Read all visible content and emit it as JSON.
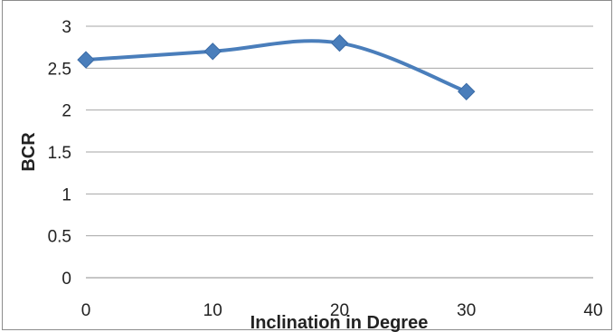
{
  "chart_data": {
    "type": "line",
    "title": "",
    "xlabel": "Inclination in Degree",
    "ylabel": "BCR",
    "xlim": [
      0,
      40
    ],
    "ylim": [
      0,
      3
    ],
    "x_ticks": [
      "0",
      "10",
      "20",
      "30",
      "40"
    ],
    "y_ticks": [
      "0",
      "0.5",
      "1",
      "1.5",
      "2",
      "2.5",
      "3"
    ],
    "grid": true,
    "smooth": true,
    "marker": "diamond",
    "series": [
      {
        "color": "#4a7ebb",
        "x": [
          0,
          10,
          20,
          30
        ],
        "y": [
          2.6,
          2.7,
          2.8,
          2.22
        ]
      }
    ]
  }
}
